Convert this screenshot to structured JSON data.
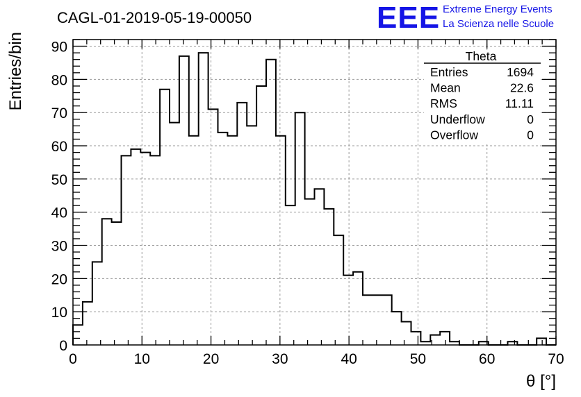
{
  "title": "CAGL-01-2019-05-19-00050",
  "logo": {
    "mark": "EEE",
    "line1": "Extreme Energy Events",
    "line2": "La Scienza nelle Scuole",
    "color": "#1515e6"
  },
  "stats": {
    "name": "Theta",
    "rows": [
      {
        "label": "Entries",
        "value": "1694"
      },
      {
        "label": "Mean",
        "value": "22.6"
      },
      {
        "label": "RMS",
        "value": "11.11"
      },
      {
        "label": "Underflow",
        "value": "0"
      },
      {
        "label": "Overflow",
        "value": "0"
      }
    ]
  },
  "chart_data": {
    "type": "histogram",
    "xlabel": "θ [°]",
    "ylabel": "Entries/bin",
    "xlim": [
      0,
      70
    ],
    "ylim": [
      0,
      92
    ],
    "bin_width": 1.4,
    "x_ticks": [
      0,
      10,
      20,
      30,
      40,
      50,
      60,
      70
    ],
    "y_ticks": [
      0,
      10,
      20,
      30,
      40,
      50,
      60,
      70,
      80,
      90
    ],
    "grid": true,
    "values": [
      6,
      13,
      25,
      38,
      37,
      57,
      59,
      58,
      57,
      77,
      67,
      87,
      63,
      88,
      71,
      64,
      63,
      73,
      66,
      78,
      86,
      63,
      42,
      70,
      44,
      47,
      41,
      33,
      21,
      22,
      15,
      15,
      15,
      10,
      7,
      4,
      1,
      3,
      4,
      1,
      0,
      0,
      1,
      0,
      0,
      1,
      0,
      0,
      2,
      0
    ]
  }
}
